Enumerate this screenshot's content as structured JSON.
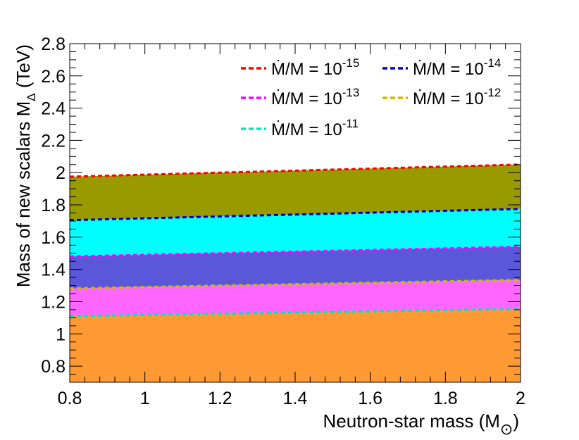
{
  "chart_data": {
    "type": "area",
    "title": "",
    "xlabel_main": "Neutron-star mass (M",
    "xlabel_sub": "⊙",
    "xlabel_close": ")",
    "ylabel_main": "Mass of new scalars M",
    "ylabel_sub": "Δ",
    "ylabel_unit": " (TeV)",
    "xlim": [
      0.8,
      2.0
    ],
    "ylim": [
      0.7,
      2.8
    ],
    "x_ticks": [
      0.8,
      1.0,
      1.2,
      1.4,
      1.6,
      1.8,
      2.0
    ],
    "x_tick_labels": [
      "0.8",
      "1",
      "1.2",
      "1.4",
      "1.6",
      "1.8",
      "2"
    ],
    "y_ticks": [
      0.8,
      1.0,
      1.2,
      1.4,
      1.6,
      1.8,
      2.0,
      2.2,
      2.4,
      2.6,
      2.8
    ],
    "y_tick_labels": [
      "0.8",
      "1",
      "1.2",
      "1.4",
      "1.6",
      "1.8",
      "2",
      "2.2",
      "2.4",
      "2.6",
      "2.8"
    ],
    "grid": false,
    "legend_placement": "top-right",
    "x": [
      0.8,
      2.0
    ],
    "series": [
      {
        "name": "Ṁ/M = 10",
        "exponent": "-15",
        "values": [
          1.975,
          2.05
        ],
        "line_color": "#ff0000",
        "fill_color": "#999900"
      },
      {
        "name": "Ṁ/M = 10",
        "exponent": "-14",
        "values": [
          1.705,
          1.775
        ],
        "line_color": "#0000cc",
        "fill_color": "#00ffff"
      },
      {
        "name": "Ṁ/M = 10",
        "exponent": "-13",
        "values": [
          1.48,
          1.54
        ],
        "line_color": "#ff00ff",
        "fill_color": "#5a57d8"
      },
      {
        "name": "Ṁ/M = 10",
        "exponent": "-12",
        "values": [
          1.282,
          1.335
        ],
        "line_color": "#ccbb00",
        "fill_color": "#ff66ff"
      },
      {
        "name": "Ṁ/M = 10",
        "exponent": "-11",
        "values": [
          1.11,
          1.155
        ],
        "line_color": "#00e5c0",
        "fill_color": "#ff9933"
      }
    ]
  }
}
